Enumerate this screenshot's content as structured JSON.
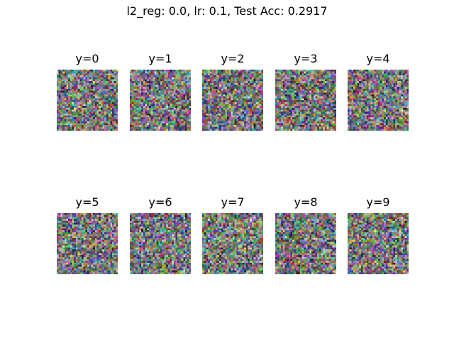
{
  "chart_data": {
    "type": "heatmap",
    "title": "l2_reg: 0.0, lr: 0.1, Test Acc: 0.2917",
    "l2_reg": 0.0,
    "lr": 0.1,
    "test_acc": 0.2917,
    "grid": {
      "rows": 2,
      "cols": 5
    },
    "panels": [
      {
        "label": "y=0"
      },
      {
        "label": "y=1"
      },
      {
        "label": "y=2"
      },
      {
        "label": "y=3"
      },
      {
        "label": "y=4"
      },
      {
        "label": "y=5"
      },
      {
        "label": "y=6"
      },
      {
        "label": "y=7"
      },
      {
        "label": "y=8"
      },
      {
        "label": "y=9"
      }
    ],
    "image_resolution": 32,
    "content": "random RGB noise weight visualizations, no axes",
    "colors": {
      "blob_y1": "#2fd6a8",
      "blob_y4": "#c92fb2",
      "blob_y5": "#3ff07a",
      "blob_y6": "#46e06a",
      "blob_y7": "#2ee66e",
      "blob_y0": "#28c86e"
    }
  }
}
